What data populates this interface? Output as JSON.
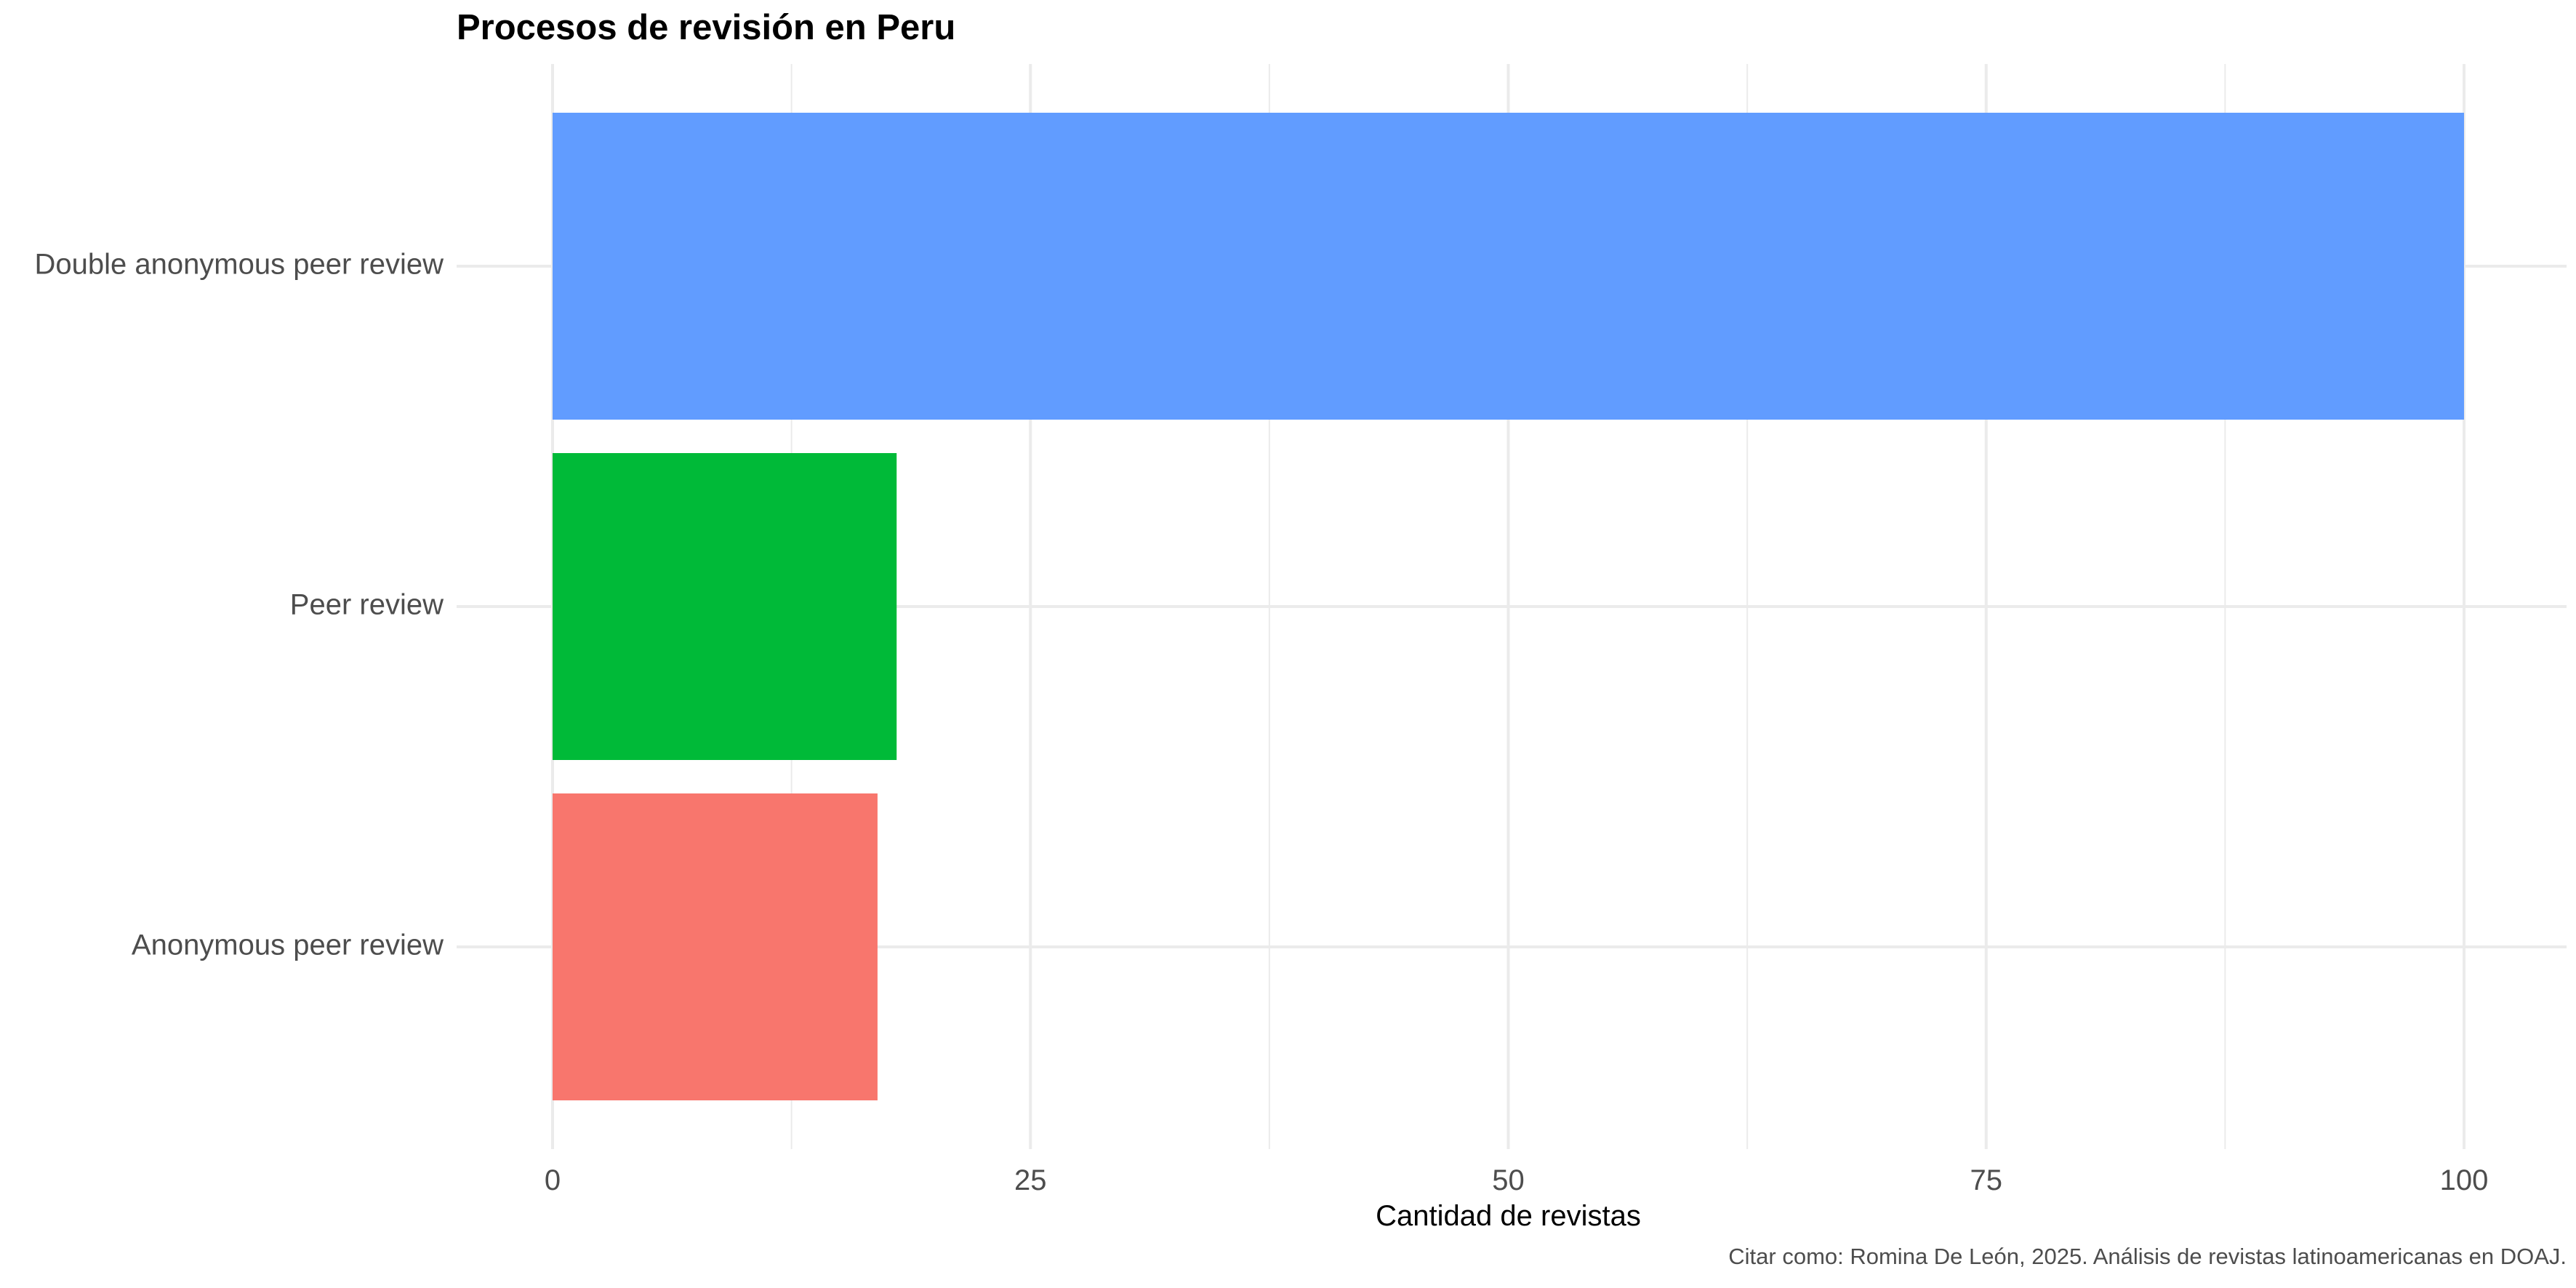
{
  "chart_data": {
    "type": "bar",
    "orientation": "horizontal",
    "title": "Procesos de revisión en Peru",
    "xlabel": "Cantidad de revistas",
    "ylabel": "",
    "caption": "Citar como: Romina De León, 2025. Análisis de revistas latinoamericanas en DOAJ.",
    "categories": [
      "Double anonymous peer review",
      "Peer review",
      "Anonymous peer review"
    ],
    "values": [
      100,
      18,
      17
    ],
    "colors": [
      "#619CFF",
      "#00BA38",
      "#F8766D"
    ],
    "xlim": [
      0,
      100
    ],
    "xticks": [
      0,
      25,
      50,
      75,
      100
    ],
    "grid": true,
    "legend": "none"
  }
}
